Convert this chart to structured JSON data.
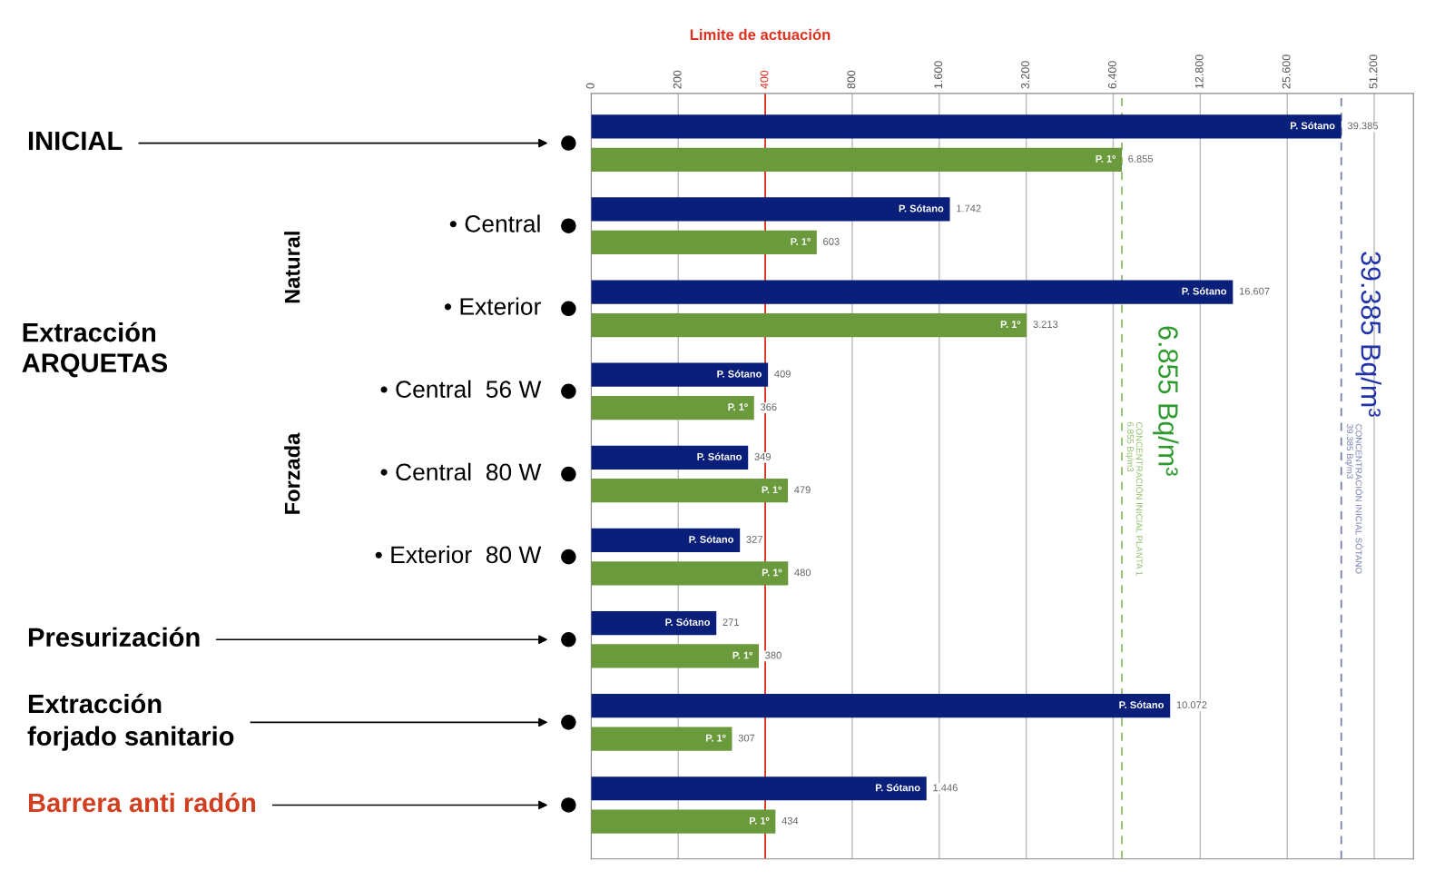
{
  "chart_data": {
    "type": "bar",
    "orientation": "horizontal",
    "log": "x",
    "categories": [
      "INICIAL",
      "• Central",
      "• Exterior",
      "• Central  56 W",
      "• Central  80 W",
      "• Exterior  80 W",
      "Presurización",
      "Extracción\nforjado sanitario",
      "Barrera anti radón"
    ],
    "series": [
      {
        "name": "P. Sótano",
        "color": "#0a1f7a",
        "values": [
          39385,
          1742,
          16607,
          409,
          349,
          327,
          271,
          10072,
          1446
        ],
        "value_labels": [
          "39.385",
          "1.742",
          "16.607",
          "409",
          "349",
          "327",
          "271",
          "10.072",
          "1.446"
        ]
      },
      {
        "name": "P. 1º",
        "color": "#6b9a3c",
        "values": [
          6855,
          603,
          3213,
          366,
          479,
          480,
          380,
          307,
          434
        ],
        "value_labels": [
          "6.855",
          "603",
          "3.213",
          "366",
          "479",
          "480",
          "380",
          "307",
          "434"
        ]
      }
    ],
    "xlim": [
      0,
      70000
    ],
    "xticks": [
      0,
      200,
      400,
      800,
      {
        "value": 1600,
        "label": "1.600"
      },
      {
        "value": 3200,
        "label": "3.200"
      },
      {
        "value": 6400,
        "label": "6.400"
      },
      {
        "value": 12800,
        "label": "12.800"
      },
      {
        "value": 25600,
        "label": "25.600"
      },
      {
        "value": 51200,
        "label": "51.200"
      }
    ],
    "grid": "x",
    "ref_lines": [
      {
        "axis": "x",
        "value": 400,
        "label": "Limite de actuación",
        "color": "#e03020",
        "line_style": "solid"
      },
      {
        "axis": "x",
        "value": 6855,
        "label": "CONCENTRACIÓN INICIAL PLANTA 1\n6.855 Bq/m3",
        "color": "#8fbf6a",
        "line_style": "dashed"
      },
      {
        "axis": "x",
        "value": 39385,
        "label": "CONCENTRACIÓN INICIAL SÓTANO\n39.385 Bq/m3",
        "color": "#7a80b0",
        "line_style": "dashed"
      }
    ],
    "annotations": [
      "Natural",
      "Forzada",
      "Extracción\nARQUETAS",
      "6.855 Bq/m³",
      "39.385 Bq/m³"
    ]
  }
}
